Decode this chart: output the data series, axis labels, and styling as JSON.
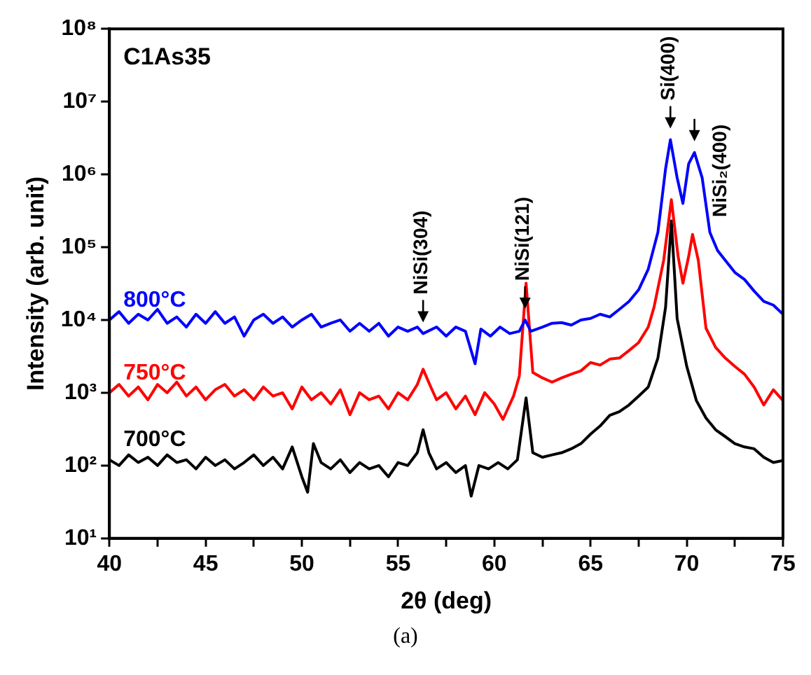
{
  "chart_data": {
    "type": "line",
    "title": "C1As35",
    "xlabel": "2θ (deg)",
    "ylabel": "Intensity (arb. unit)",
    "log": "y",
    "grid": false,
    "legend": false,
    "marker": "none",
    "line_style": "solid",
    "xlim": [
      40,
      75
    ],
    "xticks": [
      40,
      {
        "value": 42.5,
        "label": null
      },
      45,
      {
        "value": 47.5,
        "label": null
      },
      50,
      {
        "value": 52.5,
        "label": null
      },
      55,
      {
        "value": 57.5,
        "label": null
      },
      60,
      {
        "value": 62.5,
        "label": null
      },
      65,
      {
        "value": 67.5,
        "label": null
      },
      70,
      {
        "value": 72.5,
        "label": null
      },
      75
    ],
    "ylim": [
      10,
      100000000
    ],
    "yticks": [
      {
        "value": 10,
        "label": "10¹"
      },
      {
        "value": 100,
        "label": "10²"
      },
      {
        "value": 1000,
        "label": "10³"
      },
      {
        "value": 10000,
        "label": "10⁴"
      },
      {
        "value": 100000,
        "label": "10⁵"
      },
      {
        "value": 1000000,
        "label": "10⁶"
      },
      {
        "value": 10000000,
        "label": "10⁷"
      },
      {
        "value": 100000000,
        "label": "10⁸"
      }
    ],
    "series": [
      {
        "name": "800°C",
        "color": "#0000ff",
        "x": [
          40,
          40.5,
          41,
          41.5,
          42,
          42.5,
          43,
          43.5,
          44,
          44.5,
          45,
          45.5,
          46,
          46.5,
          47,
          47.5,
          48,
          48.5,
          49,
          49.5,
          50,
          50.5,
          51,
          51.5,
          52,
          52.5,
          53,
          53.5,
          54,
          54.5,
          55,
          55.5,
          56,
          56.3,
          57,
          57.5,
          58,
          58.5,
          59,
          59.3,
          59.8,
          60.3,
          60.8,
          61.3,
          61.6,
          61.9,
          62.5,
          63,
          63.5,
          64,
          64.5,
          65,
          65.5,
          66,
          66.5,
          67,
          67.5,
          68,
          68.5,
          68.9,
          69.15,
          69.5,
          69.8,
          70.1,
          70.4,
          70.8,
          71.2,
          71.6,
          72,
          72.5,
          73,
          73.5,
          74,
          74.5,
          75
        ],
        "values": [
          10000,
          13000,
          9000,
          12000,
          10000,
          14000,
          9000,
          11000,
          8000,
          12000,
          9000,
          13000,
          9000,
          11000,
          6000,
          10000,
          12000,
          9000,
          11000,
          8000,
          10000,
          12000,
          8000,
          9000,
          10000,
          7000,
          9000,
          7000,
          9000,
          6000,
          8000,
          7000,
          8000,
          6500,
          8000,
          6000,
          8000,
          7000,
          2500,
          7500,
          6000,
          8000,
          6500,
          7000,
          10000,
          7000,
          8000,
          9000,
          9200,
          8500,
          10000,
          10500,
          12000,
          11000,
          14000,
          18000,
          26000,
          50000,
          160000,
          1200000,
          3000000,
          900000,
          400000,
          1400000,
          2000000,
          900000,
          160000,
          90000,
          66000,
          45000,
          36000,
          25000,
          18000,
          16000,
          12000
        ]
      },
      {
        "name": "750°C",
        "color": "#ff0000",
        "x": [
          40,
          40.5,
          41,
          41.5,
          42,
          42.5,
          43,
          43.5,
          44,
          44.5,
          45,
          45.5,
          46,
          46.5,
          47,
          47.5,
          48,
          48.5,
          49,
          49.5,
          50,
          50.5,
          51,
          51.5,
          52,
          52.5,
          53,
          53.5,
          54,
          54.5,
          55,
          55.5,
          56,
          56.3,
          56.7,
          57,
          57.5,
          58,
          58.5,
          59,
          59.5,
          60,
          60.45,
          61,
          61.3,
          61.65,
          62,
          62.5,
          63,
          63.5,
          64,
          64.5,
          65,
          65.5,
          66,
          66.5,
          67,
          67.5,
          68,
          68.3,
          68.8,
          69.2,
          69.55,
          69.8,
          70.1,
          70.3,
          70.6,
          71,
          71.5,
          72,
          72.5,
          73,
          73.5,
          74,
          74.5,
          75
        ],
        "values": [
          1000,
          1300,
          900,
          1200,
          800,
          1300,
          1000,
          1400,
          900,
          1200,
          800,
          1100,
          1300,
          900,
          1100,
          800,
          1200,
          900,
          1000,
          600,
          1200,
          800,
          1000,
          700,
          1100,
          500,
          1000,
          800,
          900,
          600,
          1000,
          800,
          1300,
          2100,
          1200,
          800,
          1000,
          600,
          900,
          500,
          1000,
          700,
          430,
          900,
          1700,
          32000,
          1900,
          1600,
          1400,
          1600,
          1800,
          2000,
          2600,
          2400,
          2900,
          3000,
          3800,
          4900,
          8000,
          15000,
          66000,
          450000,
          75000,
          32000,
          75000,
          150000,
          66000,
          7700,
          4200,
          3000,
          2300,
          1800,
          1200,
          680,
          1100,
          780
        ]
      },
      {
        "name": "700°C",
        "color": "#000000",
        "x": [
          40,
          40.5,
          41,
          41.5,
          42,
          42.5,
          43,
          43.5,
          44,
          44.5,
          45,
          45.5,
          46,
          46.5,
          47,
          47.5,
          48,
          48.5,
          49,
          49.5,
          50,
          50.3,
          50.6,
          51,
          51.5,
          52,
          52.5,
          53,
          53.5,
          54,
          54.5,
          55,
          55.5,
          56,
          56.3,
          56.6,
          57,
          57.5,
          58,
          58.5,
          58.8,
          59.2,
          59.7,
          60.2,
          60.7,
          61.2,
          61.65,
          62,
          62.5,
          63,
          63.5,
          64,
          64.5,
          65,
          65.5,
          66,
          66.5,
          67,
          67.5,
          68,
          68.5,
          68.9,
          69.2,
          69.5,
          70,
          70.5,
          71,
          71.5,
          72,
          72.5,
          73,
          73.5,
          74,
          74.5,
          75
        ],
        "values": [
          120,
          100,
          140,
          110,
          130,
          100,
          140,
          110,
          120,
          90,
          130,
          100,
          120,
          90,
          110,
          140,
          100,
          130,
          90,
          180,
          70,
          43,
          200,
          110,
          90,
          120,
          80,
          110,
          90,
          100,
          70,
          110,
          100,
          150,
          310,
          150,
          90,
          110,
          80,
          100,
          38,
          100,
          90,
          110,
          90,
          120,
          850,
          150,
          130,
          140,
          150,
          170,
          200,
          270,
          350,
          490,
          550,
          680,
          900,
          1200,
          3000,
          15000,
          230000,
          10500,
          2300,
          780,
          450,
          310,
          250,
          200,
          180,
          170,
          130,
          110,
          117
        ]
      }
    ],
    "annotations": [
      {
        "text": "NiSi(304)",
        "x": 56.3,
        "y": 6500
      },
      {
        "text": "NiSi(121)",
        "x": 61.6,
        "y": 10000
      },
      {
        "text": "Si(400)",
        "x": 69.15,
        "y": 3000000
      },
      {
        "text": "NiSi₂(400)",
        "x": 70.4,
        "y": 2000000
      },
      "(a)"
    ]
  }
}
